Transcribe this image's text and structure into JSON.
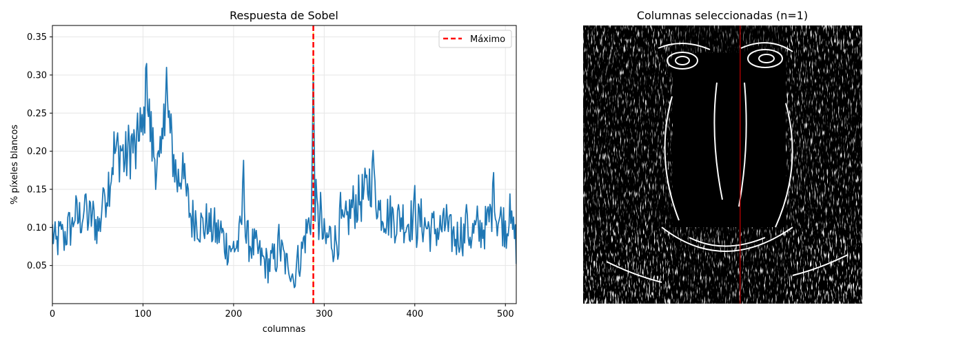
{
  "chart_data": [
    {
      "type": "line",
      "title": "Respuesta de Sobel",
      "xlabel": "columnas",
      "ylabel": "% píxeles blancos",
      "xlim": [
        0,
        512
      ],
      "ylim": [
        0.0,
        0.365
      ],
      "xticks": [
        0,
        100,
        200,
        300,
        400,
        500
      ],
      "yticks": [
        0.05,
        0.1,
        0.15,
        0.2,
        0.25,
        0.3,
        0.35
      ],
      "grid": true,
      "legend": {
        "position": "top-right",
        "entries": [
          "Máximo"
        ]
      },
      "colors": {
        "series": "#1f77b4",
        "max_line": "#ff0000",
        "max_inner": "#ffff33"
      },
      "max_column": 288,
      "anchors": [
        [
          0,
          0.095
        ],
        [
          4,
          0.075
        ],
        [
          8,
          0.09
        ],
        [
          12,
          0.085
        ],
        [
          16,
          0.095
        ],
        [
          20,
          0.1
        ],
        [
          24,
          0.12
        ],
        [
          28,
          0.11
        ],
        [
          32,
          0.115
        ],
        [
          36,
          0.125
        ],
        [
          40,
          0.11
        ],
        [
          44,
          0.115
        ],
        [
          48,
          0.105
        ],
        [
          52,
          0.1
        ],
        [
          56,
          0.14
        ],
        [
          60,
          0.15
        ],
        [
          64,
          0.17
        ],
        [
          68,
          0.2
        ],
        [
          72,
          0.195
        ],
        [
          76,
          0.205
        ],
        [
          80,
          0.185
        ],
        [
          84,
          0.2
        ],
        [
          88,
          0.21
        ],
        [
          92,
          0.195
        ],
        [
          96,
          0.22
        ],
        [
          100,
          0.215
        ],
        [
          103,
          0.29
        ],
        [
          106,
          0.25
        ],
        [
          110,
          0.21
        ],
        [
          114,
          0.19
        ],
        [
          118,
          0.17
        ],
        [
          122,
          0.21
        ],
        [
          126,
          0.27
        ],
        [
          130,
          0.22
        ],
        [
          134,
          0.19
        ],
        [
          138,
          0.16
        ],
        [
          142,
          0.17
        ],
        [
          146,
          0.15
        ],
        [
          150,
          0.13
        ],
        [
          154,
          0.11
        ],
        [
          158,
          0.115
        ],
        [
          162,
          0.105
        ],
        [
          166,
          0.1
        ],
        [
          170,
          0.105
        ],
        [
          174,
          0.095
        ],
        [
          178,
          0.1
        ],
        [
          182,
          0.09
        ],
        [
          186,
          0.095
        ],
        [
          190,
          0.08
        ],
        [
          194,
          0.075
        ],
        [
          198,
          0.08
        ],
        [
          202,
          0.075
        ],
        [
          206,
          0.08
        ],
        [
          210,
          0.12
        ],
        [
          214,
          0.085
        ],
        [
          218,
          0.08
        ],
        [
          222,
          0.075
        ],
        [
          226,
          0.07
        ],
        [
          230,
          0.06
        ],
        [
          234,
          0.055
        ],
        [
          238,
          0.05
        ],
        [
          242,
          0.055
        ],
        [
          246,
          0.06
        ],
        [
          250,
          0.065
        ],
        [
          254,
          0.065
        ],
        [
          258,
          0.05
        ],
        [
          262,
          0.05
        ],
        [
          266,
          0.045
        ],
        [
          270,
          0.055
        ],
        [
          274,
          0.06
        ],
        [
          278,
          0.085
        ],
        [
          282,
          0.1
        ],
        [
          286,
          0.12
        ],
        [
          288,
          0.155
        ],
        [
          290,
          0.14
        ],
        [
          294,
          0.1
        ],
        [
          298,
          0.09
        ],
        [
          302,
          0.08
        ],
        [
          306,
          0.09
        ],
        [
          310,
          0.08
        ],
        [
          314,
          0.085
        ],
        [
          318,
          0.09
        ],
        [
          322,
          0.1
        ],
        [
          326,
          0.11
        ],
        [
          330,
          0.125
        ],
        [
          334,
          0.13
        ],
        [
          338,
          0.135
        ],
        [
          342,
          0.14
        ],
        [
          346,
          0.145
        ],
        [
          350,
          0.16
        ],
        [
          354,
          0.165
        ],
        [
          358,
          0.135
        ],
        [
          362,
          0.125
        ],
        [
          366,
          0.12
        ],
        [
          370,
          0.115
        ],
        [
          374,
          0.115
        ],
        [
          378,
          0.11
        ],
        [
          382,
          0.11
        ],
        [
          386,
          0.115
        ],
        [
          390,
          0.105
        ],
        [
          394,
          0.11
        ],
        [
          398,
          0.11
        ],
        [
          402,
          0.1
        ],
        [
          406,
          0.11
        ],
        [
          410,
          0.105
        ],
        [
          414,
          0.1
        ],
        [
          418,
          0.095
        ],
        [
          422,
          0.1
        ],
        [
          426,
          0.095
        ],
        [
          430,
          0.1
        ],
        [
          434,
          0.095
        ],
        [
          438,
          0.09
        ],
        [
          442,
          0.09
        ],
        [
          446,
          0.085
        ],
        [
          450,
          0.095
        ],
        [
          454,
          0.09
        ],
        [
          458,
          0.095
        ],
        [
          462,
          0.09
        ],
        [
          466,
          0.095
        ],
        [
          470,
          0.09
        ],
        [
          474,
          0.1
        ],
        [
          478,
          0.1
        ],
        [
          482,
          0.11
        ],
        [
          486,
          0.13
        ],
        [
          490,
          0.115
        ],
        [
          494,
          0.11
        ],
        [
          498,
          0.105
        ],
        [
          502,
          0.1
        ],
        [
          506,
          0.095
        ],
        [
          510,
          0.09
        ],
        [
          512,
          0.075
        ]
      ],
      "spikes": [
        [
          104,
          0.315
        ],
        [
          126,
          0.31
        ],
        [
          211,
          0.188
        ],
        [
          288,
          0.315
        ],
        [
          354,
          0.201
        ],
        [
          487,
          0.172
        ],
        [
          11,
          0.104
        ],
        [
          22,
          0.113
        ],
        [
          37,
          0.144
        ],
        [
          56,
          0.152
        ],
        [
          72,
          0.224
        ],
        [
          97,
          0.257
        ],
        [
          123,
          0.262
        ],
        [
          129,
          0.253
        ],
        [
          144,
          0.198
        ],
        [
          173,
          0.119
        ],
        [
          198,
          0.072
        ],
        [
          225,
          0.096
        ],
        [
          250,
          0.104
        ],
        [
          261,
          0.039
        ],
        [
          267,
          0.021
        ],
        [
          296,
          0.146
        ],
        [
          318,
          0.146
        ],
        [
          360,
          0.135
        ],
        [
          400,
          0.155
        ],
        [
          435,
          0.13
        ],
        [
          457,
          0.13
        ],
        [
          469,
          0.128
        ],
        [
          505,
          0.144
        ]
      ]
    },
    {
      "type": "image",
      "title": "Columnas seleccionadas (n=1)",
      "selected_column": 288,
      "image_width": 512,
      "line_color": "#cc0000"
    }
  ]
}
